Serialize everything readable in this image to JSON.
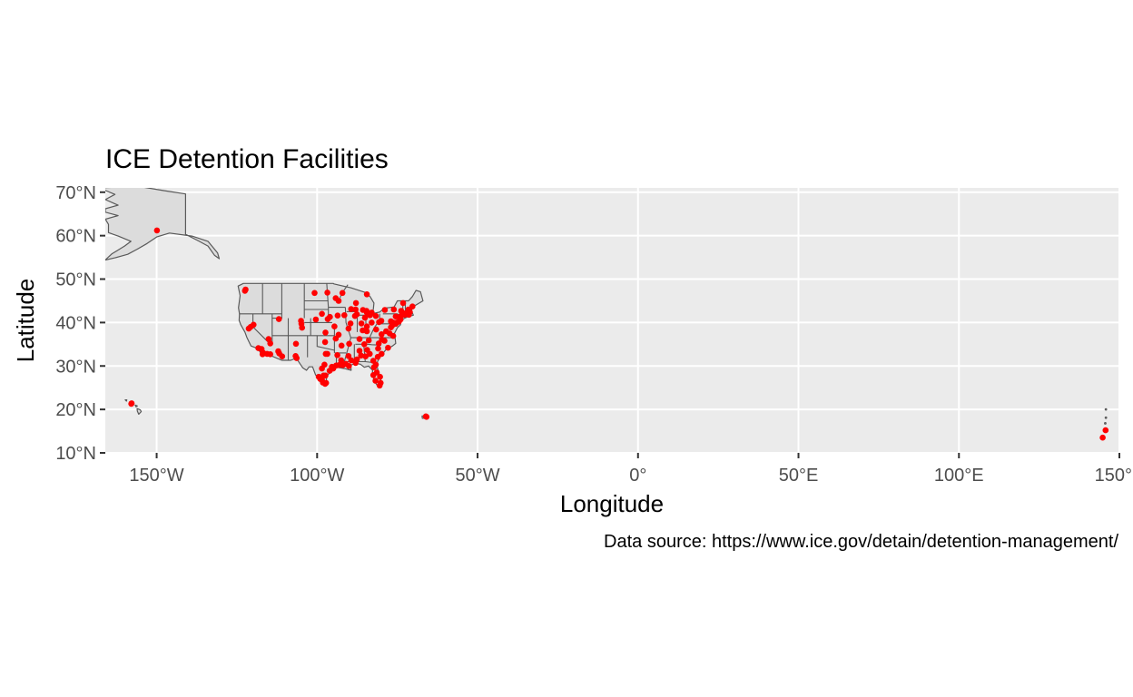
{
  "chart_data": {
    "type": "scatter",
    "title": "ICE Detention Facilities",
    "xlabel": "Longitude",
    "ylabel": "Latitude",
    "caption": "Data source: https://www.ice.gov/detain/detention-management/",
    "xlim": [
      -166,
      150
    ],
    "ylim": [
      10,
      71
    ],
    "grid": true,
    "x_ticks": [
      {
        "value": -150,
        "label": "150°W"
      },
      {
        "value": -100,
        "label": "100°W"
      },
      {
        "value": -50,
        "label": "50°W"
      },
      {
        "value": 0,
        "label": "0°"
      },
      {
        "value": 50,
        "label": "50°E"
      },
      {
        "value": 100,
        "label": "100°E"
      },
      {
        "value": 150,
        "label": "150°E"
      }
    ],
    "y_ticks": [
      {
        "value": 10,
        "label": "10°N"
      },
      {
        "value": 20,
        "label": "20°N"
      },
      {
        "value": 30,
        "label": "30°N"
      },
      {
        "value": 40,
        "label": "40°N"
      },
      {
        "value": 50,
        "label": "50°N"
      },
      {
        "value": 60,
        "label": "60°N"
      },
      {
        "value": 70,
        "label": "70°N"
      }
    ],
    "colors": {
      "panel": "#ebebeb",
      "point": "#ff0000",
      "land": "#dcdcdc",
      "border": "#595959"
    },
    "series": [
      {
        "points": [
          [
            -149.9,
            61.2
          ],
          [
            -157.9,
            21.3
          ],
          [
            -157.8,
            21.4
          ],
          [
            -66.1,
            18.4
          ],
          [
            -65.9,
            18.3
          ],
          [
            144.8,
            13.5
          ],
          [
            145.7,
            15.2
          ],
          [
            -122.5,
            47.3
          ],
          [
            -122.3,
            47.6
          ],
          [
            -120.7,
            39.0
          ],
          [
            -121.3,
            38.6
          ],
          [
            -119.8,
            39.5
          ],
          [
            -118.3,
            34.1
          ],
          [
            -117.3,
            33.9
          ],
          [
            -117.0,
            32.7
          ],
          [
            -116.9,
            33.1
          ],
          [
            -115.6,
            32.8
          ],
          [
            -115.1,
            36.2
          ],
          [
            -114.6,
            35.2
          ],
          [
            -112.1,
            33.4
          ],
          [
            -111.8,
            32.9
          ],
          [
            -110.9,
            32.2
          ],
          [
            -114.6,
            32.7
          ],
          [
            -111.9,
            40.8
          ],
          [
            -106.6,
            35.1
          ],
          [
            -106.7,
            32.3
          ],
          [
            -106.4,
            31.8
          ],
          [
            -104.9,
            39.7
          ],
          [
            -104.7,
            38.8
          ],
          [
            -105.0,
            40.4
          ],
          [
            -100.4,
            40.7
          ],
          [
            -97.5,
            35.5
          ],
          [
            -98.5,
            29.4
          ],
          [
            -97.7,
            30.3
          ],
          [
            -99.5,
            27.5
          ],
          [
            -98.2,
            26.2
          ],
          [
            -97.5,
            25.9
          ],
          [
            -97.2,
            26.1
          ],
          [
            -98.5,
            26.8
          ],
          [
            -99.0,
            27.0
          ],
          [
            -98.0,
            27.8
          ],
          [
            -97.4,
            27.8
          ],
          [
            -97.3,
            32.8
          ],
          [
            -96.8,
            32.8
          ],
          [
            -95.4,
            29.8
          ],
          [
            -94.1,
            30.1
          ],
          [
            -95.0,
            29.4
          ],
          [
            -96.1,
            28.9
          ],
          [
            -93.2,
            30.2
          ],
          [
            -92.0,
            30.2
          ],
          [
            -91.1,
            30.5
          ],
          [
            -90.1,
            30.0
          ],
          [
            -92.5,
            31.3
          ],
          [
            -93.7,
            32.5
          ],
          [
            -90.2,
            32.3
          ],
          [
            -89.4,
            31.3
          ],
          [
            -88.0,
            30.7
          ],
          [
            -86.3,
            32.4
          ],
          [
            -86.8,
            33.5
          ],
          [
            -87.6,
            31.5
          ],
          [
            -84.4,
            33.7
          ],
          [
            -83.6,
            32.8
          ],
          [
            -84.9,
            32.2
          ],
          [
            -81.1,
            32.1
          ],
          [
            -82.5,
            31.2
          ],
          [
            -81.7,
            30.3
          ],
          [
            -82.3,
            29.7
          ],
          [
            -81.4,
            28.5
          ],
          [
            -82.5,
            27.9
          ],
          [
            -80.2,
            26.1
          ],
          [
            -80.5,
            25.5
          ],
          [
            -81.8,
            26.6
          ],
          [
            -80.4,
            27.5
          ],
          [
            -80.8,
            35.2
          ],
          [
            -79.0,
            35.8
          ],
          [
            -81.0,
            34.0
          ],
          [
            -79.9,
            32.8
          ],
          [
            -86.8,
            36.2
          ],
          [
            -85.3,
            35.0
          ],
          [
            -90.0,
            35.1
          ],
          [
            -84.5,
            38.0
          ],
          [
            -85.8,
            38.2
          ],
          [
            -83.0,
            40.0
          ],
          [
            -81.7,
            41.5
          ],
          [
            -84.5,
            39.1
          ],
          [
            -83.5,
            41.7
          ],
          [
            -83.0,
            42.3
          ],
          [
            -84.6,
            42.7
          ],
          [
            -85.7,
            42.9
          ],
          [
            -87.6,
            41.9
          ],
          [
            -88.2,
            41.5
          ],
          [
            -89.6,
            39.8
          ],
          [
            -90.2,
            38.6
          ],
          [
            -94.6,
            39.1
          ],
          [
            -93.3,
            37.2
          ],
          [
            -92.4,
            34.7
          ],
          [
            -94.2,
            36.3
          ],
          [
            -96.0,
            41.3
          ],
          [
            -96.7,
            40.8
          ],
          [
            -93.6,
            41.6
          ],
          [
            -91.5,
            41.7
          ],
          [
            -93.3,
            45.0
          ],
          [
            -94.2,
            45.6
          ],
          [
            -92.1,
            46.8
          ],
          [
            -96.8,
            46.9
          ],
          [
            -98.5,
            42.0
          ],
          [
            -100.8,
            46.8
          ],
          [
            -97.4,
            37.7
          ],
          [
            -88.0,
            43.0
          ],
          [
            -89.4,
            43.1
          ],
          [
            -87.9,
            44.5
          ],
          [
            -84.5,
            46.5
          ],
          [
            -86.2,
            39.8
          ],
          [
            -85.1,
            41.1
          ],
          [
            -80.0,
            40.4
          ],
          [
            -77.0,
            40.3
          ],
          [
            -75.2,
            40.0
          ],
          [
            -76.3,
            40.0
          ],
          [
            -75.5,
            41.4
          ],
          [
            -78.9,
            42.9
          ],
          [
            -76.1,
            43.0
          ],
          [
            -73.8,
            42.7
          ],
          [
            -74.0,
            40.7
          ],
          [
            -73.9,
            41.5
          ],
          [
            -74.2,
            40.7
          ],
          [
            -74.5,
            40.2
          ],
          [
            -75.5,
            39.7
          ],
          [
            -76.6,
            39.3
          ],
          [
            -77.0,
            38.9
          ],
          [
            -77.4,
            37.5
          ],
          [
            -76.3,
            36.9
          ],
          [
            -79.9,
            37.3
          ],
          [
            -78.5,
            38.0
          ],
          [
            -72.7,
            41.8
          ],
          [
            -71.4,
            41.8
          ],
          [
            -71.1,
            42.4
          ],
          [
            -71.5,
            43.0
          ],
          [
            -70.3,
            43.7
          ],
          [
            -73.2,
            44.5
          ],
          [
            -72.6,
            42.1
          ],
          [
            -81.6,
            38.4
          ],
          [
            -80.7,
            40.1
          ],
          [
            -79.8,
            36.1
          ],
          [
            -77.9,
            34.2
          ],
          [
            -83.9,
            35.9
          ],
          [
            -84.5,
            42.3
          ]
        ]
      }
    ]
  }
}
